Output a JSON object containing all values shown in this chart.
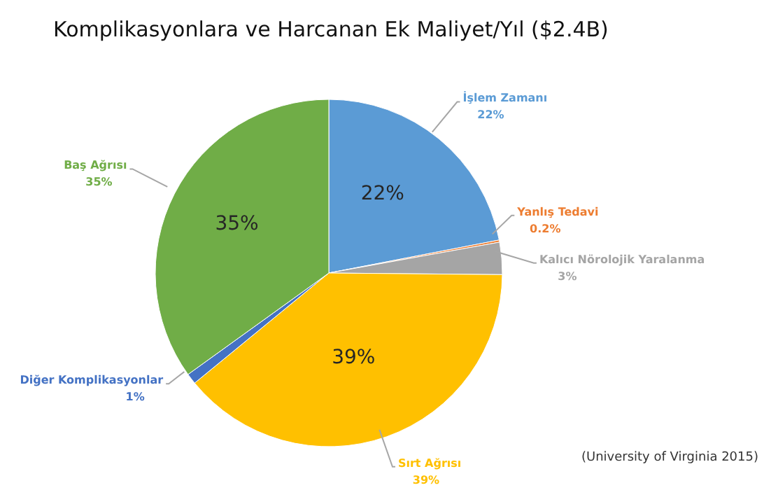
{
  "chart_data": {
    "type": "pie",
    "title": "Komplikasyonlara ve Harcanan Ek Maliyet/Yıl ($2.4B)",
    "categories": [
      "İşlem Zamanı",
      "Yanlış Tedavi",
      "Kalıcı Nörolojik Yaralanma",
      "Sırt Ağrısı",
      "Diğer Komplikasyonlar",
      "Baş Ağrısı"
    ],
    "values": [
      22,
      0.2,
      3,
      39,
      1,
      35
    ],
    "value_labels": [
      "22%",
      "0.2%",
      "3%",
      "39%",
      "1%",
      "35%"
    ],
    "colors": [
      "#5b9bd5",
      "#ed7d31",
      "#a5a5a5",
      "#ffc000",
      "#4472c4",
      "#70ad47"
    ],
    "legend": false,
    "annotations": [
      {
        "text": "22%",
        "x": "İşlem Zamanı"
      },
      {
        "text": "39%",
        "x": "Sırt Ağrısı"
      },
      {
        "text": "35%",
        "x": "Baş Ağrısı"
      },
      "(University of Virginia 2015)"
    ]
  }
}
